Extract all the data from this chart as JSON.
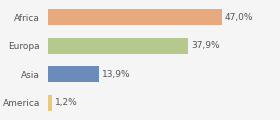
{
  "categories": [
    "Africa",
    "Europa",
    "Asia",
    "America"
  ],
  "values": [
    47.0,
    37.9,
    13.9,
    1.2
  ],
  "labels": [
    "47,0%",
    "37,9%",
    "13,9%",
    "1,2%"
  ],
  "bar_colors": [
    "#e8a97e",
    "#b5c98e",
    "#6b8cba",
    "#e8c97e"
  ],
  "background_color": "#f5f5f5",
  "xlim": [
    0,
    62
  ],
  "label_fontsize": 6.5,
  "tick_fontsize": 6.5,
  "bar_height": 0.55
}
